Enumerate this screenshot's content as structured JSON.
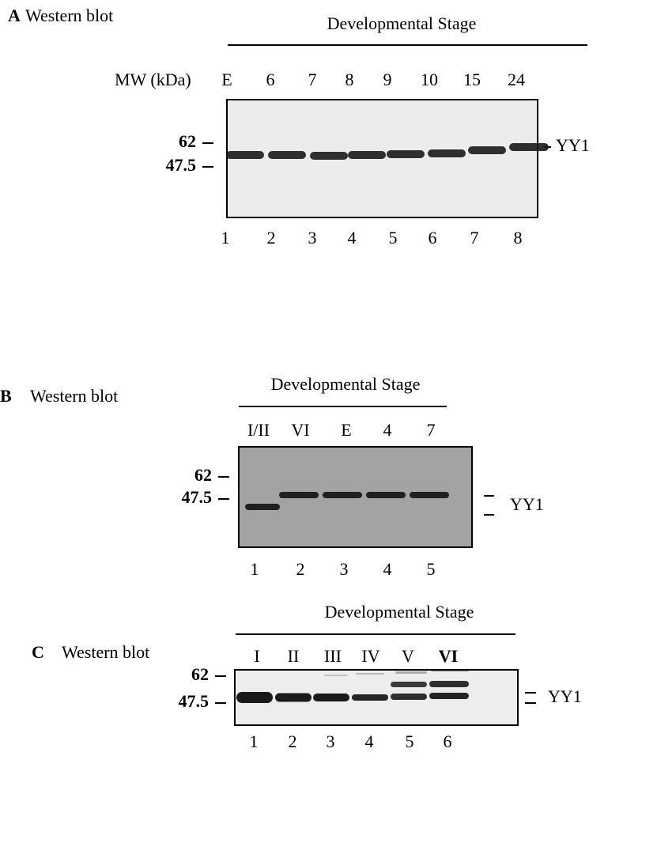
{
  "panels": [
    {
      "letter": "A",
      "method": "Western blot",
      "header": "Developmental Stage",
      "mw_title": "MW (kDa)",
      "lanes": [
        "E",
        "6",
        "7",
        "8",
        "9",
        "10",
        "15",
        "24"
      ],
      "lane_numbers": [
        "1",
        "2",
        "3",
        "4",
        "5",
        "6",
        "7",
        "8"
      ],
      "markers": [
        "62",
        "47.5"
      ],
      "band_label": "YY1"
    },
    {
      "letter": "B",
      "method": "Western blot",
      "header": "Developmental Stage",
      "lanes": [
        "I/II",
        "VI",
        "E",
        "4",
        "7"
      ],
      "lane_numbers": [
        "1",
        "2",
        "3",
        "4",
        "5"
      ],
      "markers": [
        "62",
        "47.5"
      ],
      "band_label": "YY1"
    },
    {
      "letter": "C",
      "method": "Western blot",
      "header": "Developmental Stage",
      "lanes": [
        "I",
        "II",
        "III",
        "IV",
        "V",
        "VI"
      ],
      "lane_numbers": [
        "1",
        "2",
        "3",
        "4",
        "5",
        "6"
      ],
      "markers": [
        "62",
        "47.5"
      ],
      "band_label": "YY1"
    }
  ]
}
